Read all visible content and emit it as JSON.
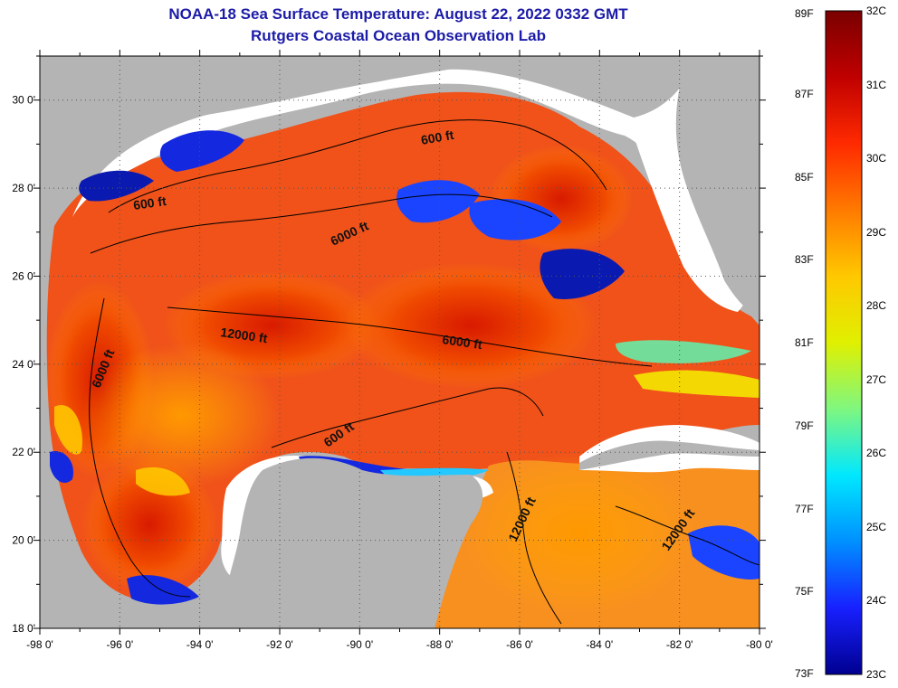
{
  "title": {
    "line1": "NOAA-18 Sea Surface Temperature:  August 22, 2022 0332 GMT",
    "line2": "Rutgers Coastal Ocean Observation Lab"
  },
  "map": {
    "lon_labels": [
      "-98 0'",
      "-96 0'",
      "-94 0'",
      "-92 0'",
      "-90 0'",
      "-88 0'",
      "-86 0'",
      "-84 0'",
      "-82 0'",
      "-80 0'"
    ],
    "lat_labels": [
      "30 0'",
      "28 0'",
      "26 0'",
      "24 0'",
      "22 0'",
      "20 0'",
      "18 0'"
    ],
    "lon_range": [
      -98,
      -80
    ],
    "lat_range": [
      18,
      31
    ],
    "contour_labels": [
      "600 ft",
      "600 ft",
      "6000 ft",
      "12000 ft",
      "6000 ft",
      "6000 ft",
      "600 ft",
      "12000 ft",
      "12000 ft"
    ],
    "colors": {
      "land": "#b4b4b4",
      "cloud": "#ffffff",
      "contour": "#000000"
    }
  },
  "colorbar": {
    "f_labels": [
      "89F",
      "87F",
      "85F",
      "83F",
      "81F",
      "79F",
      "77F",
      "75F",
      "73F"
    ],
    "c_labels": [
      "32C",
      "31C",
      "30C",
      "29C",
      "28C",
      "27C",
      "26C",
      "25C",
      "24C",
      "23C"
    ],
    "f_range": [
      73,
      89
    ],
    "c_range": [
      23,
      32
    ]
  }
}
